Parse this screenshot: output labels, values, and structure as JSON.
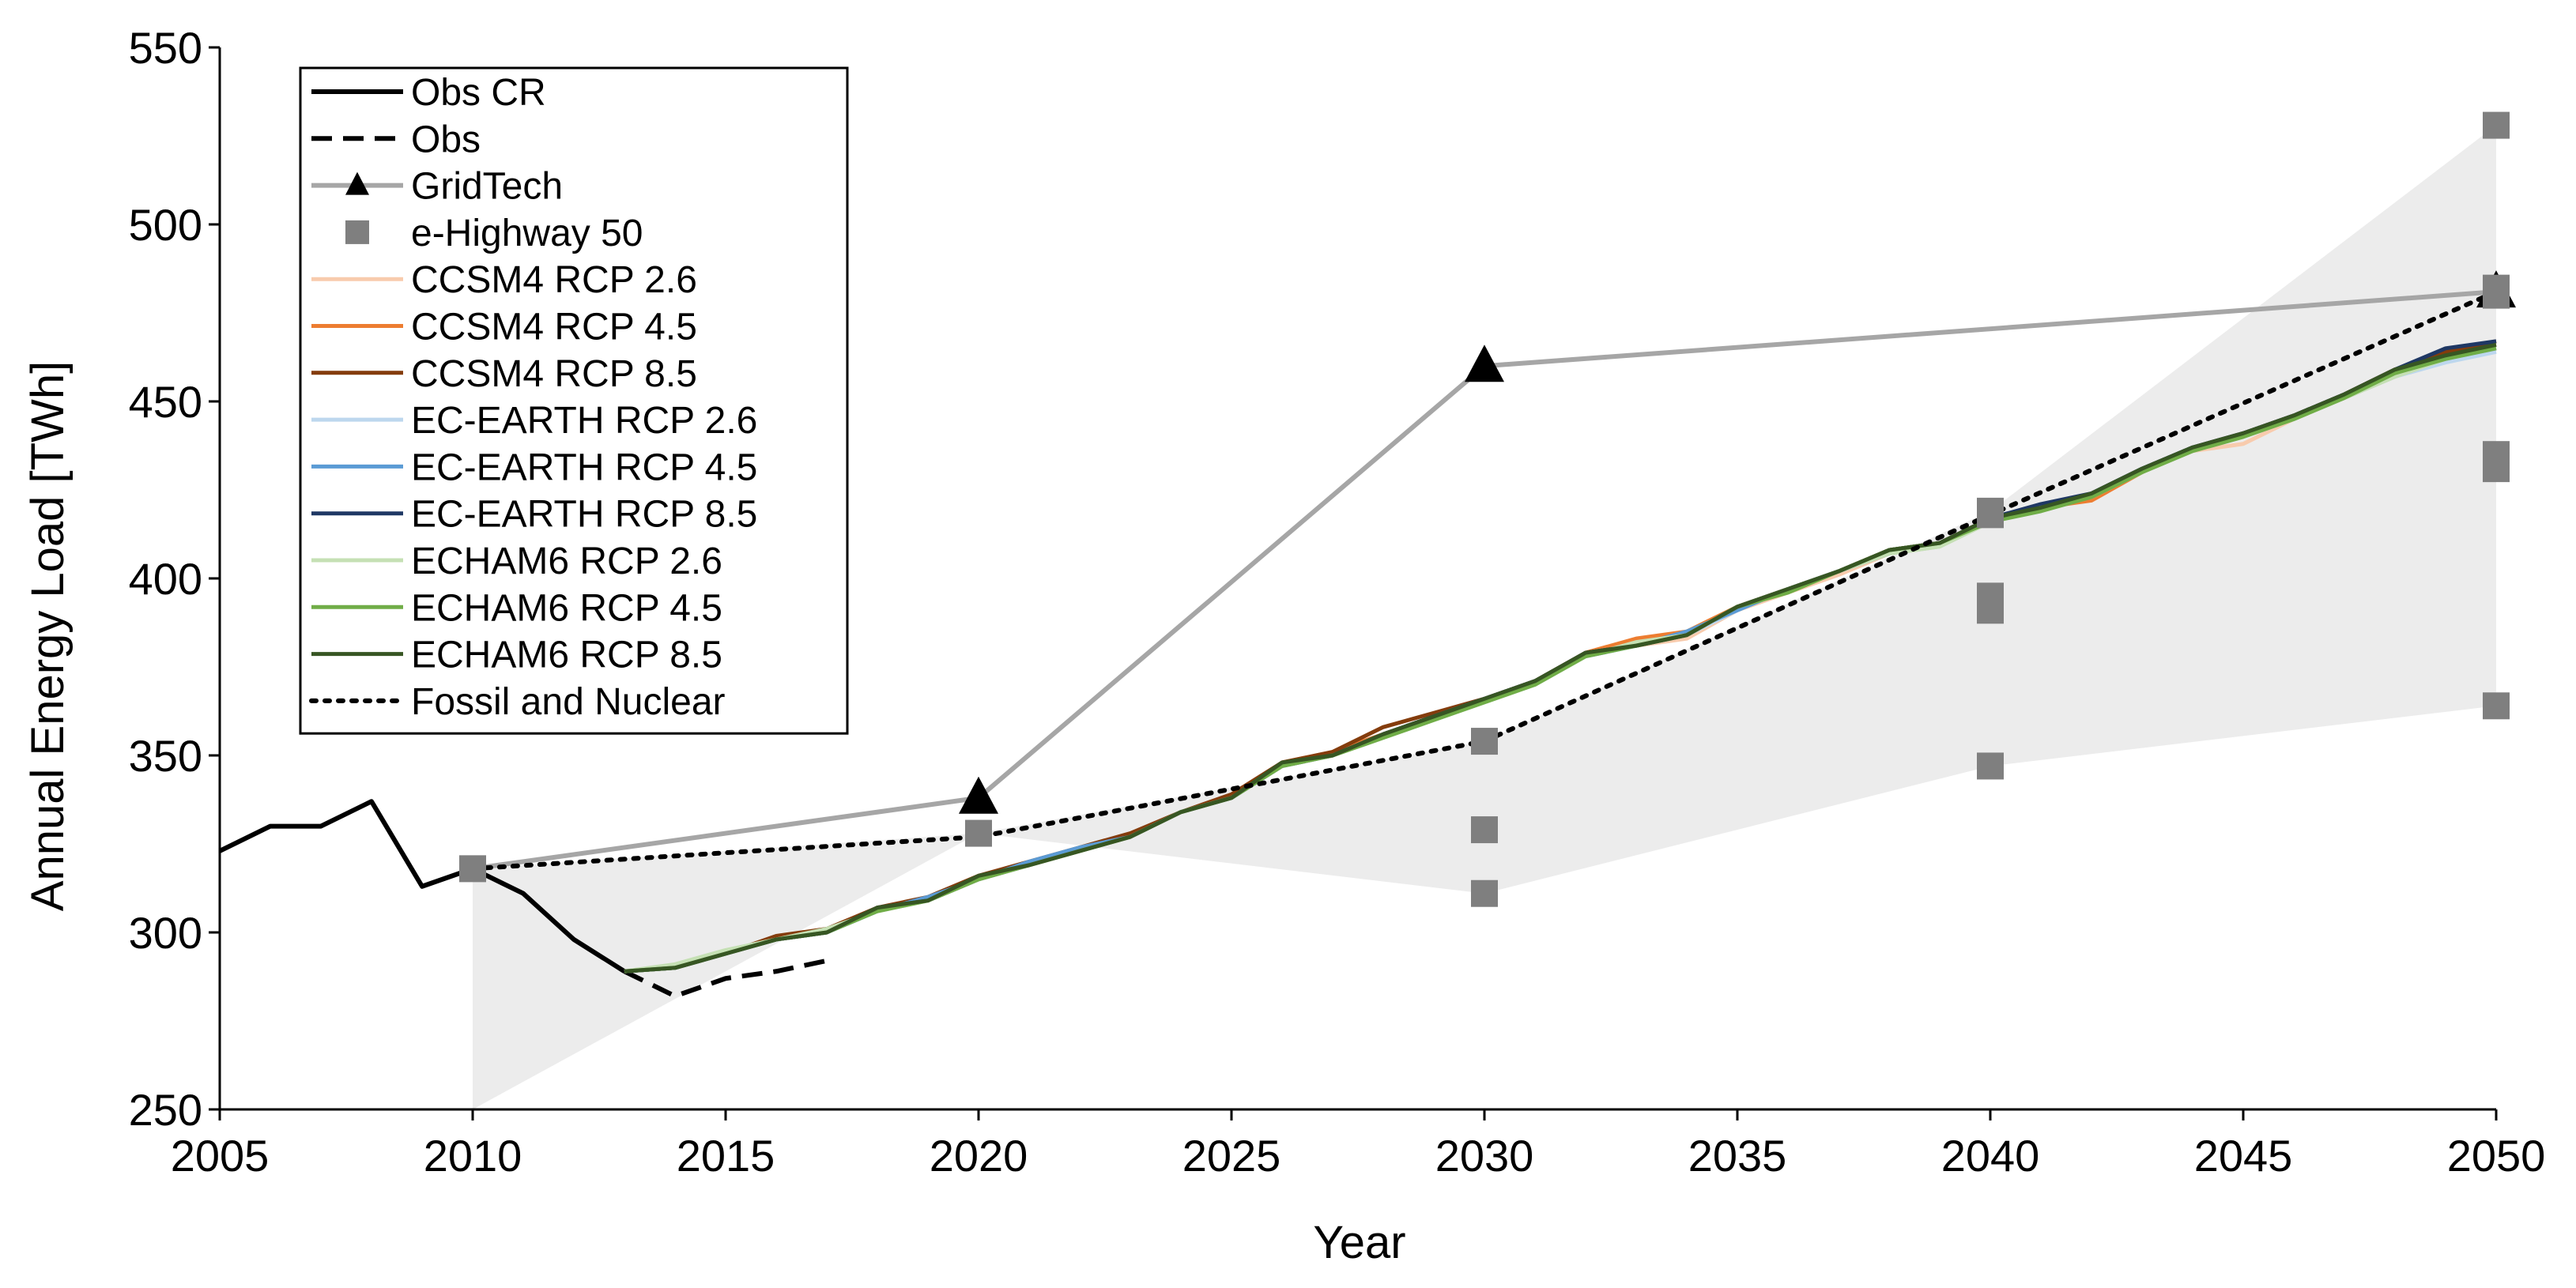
{
  "chart_data": {
    "type": "line",
    "title": "",
    "xlabel": "Year",
    "ylabel": "Annual Energy Load  [TWh]",
    "xlim": [
      2005,
      2050
    ],
    "ylim": [
      250,
      550
    ],
    "xticks": [
      2005,
      2010,
      2015,
      2020,
      2025,
      2030,
      2035,
      2040,
      2045,
      2050
    ],
    "yticks": [
      250,
      300,
      350,
      400,
      450,
      500,
      550
    ],
    "grid": false,
    "legend_position": "top-left",
    "shaded_range": {
      "x": [
        2010,
        2020,
        2030,
        2040,
        2050
      ],
      "lower": [
        250,
        328,
        311,
        347,
        364
      ],
      "upper": [
        318,
        328,
        354,
        419,
        528
      ],
      "color": "#ececec"
    },
    "series": [
      {
        "name": "Obs CR",
        "style": "solid",
        "color": "#000000",
        "width": 6,
        "x": [
          2005,
          2006,
          2007,
          2008,
          2009,
          2010,
          2011,
          2012,
          2013
        ],
        "y": [
          323,
          330,
          330,
          337,
          313,
          318,
          311,
          298,
          289
        ]
      },
      {
        "name": "Obs",
        "style": "dashed",
        "color": "#000000",
        "width": 6,
        "x": [
          2013,
          2014,
          2015,
          2016,
          2017
        ],
        "y": [
          289,
          282,
          287,
          289,
          292
        ]
      },
      {
        "name": "GridTech",
        "style": "solid",
        "color": "#a6a6a6",
        "width": 6,
        "marker": "triangle",
        "x": [
          2010,
          2020,
          2030,
          2050
        ],
        "y": [
          318,
          338,
          460,
          481
        ]
      },
      {
        "name": "e-Highway 50",
        "style": "none",
        "color": "#7f7f7f",
        "marker": "square",
        "x": [
          2010,
          2020,
          2030,
          2030,
          2030,
          2040,
          2040,
          2040,
          2040,
          2040,
          2050,
          2050,
          2050,
          2050,
          2050,
          2050
        ],
        "y": [
          318,
          328,
          354,
          329,
          311,
          419,
          395,
          391,
          347,
          418,
          528,
          482,
          480,
          435,
          431,
          364
        ]
      },
      {
        "name": "CCSM4 RCP 2.6",
        "style": "solid",
        "color": "#f8cbad",
        "width": 5,
        "x": [
          2013,
          2014,
          2015,
          2016,
          2017,
          2018,
          2019,
          2020,
          2021,
          2022,
          2023,
          2024,
          2025,
          2026,
          2027,
          2028,
          2029,
          2030,
          2031,
          2032,
          2033,
          2034,
          2035,
          2036,
          2037,
          2038,
          2039,
          2040,
          2041,
          2042,
          2043,
          2044,
          2045,
          2046,
          2047,
          2048,
          2049,
          2050
        ],
        "y": [
          289,
          290,
          294,
          298,
          300,
          306,
          309,
          315,
          319,
          323,
          327,
          334,
          338,
          347,
          350,
          355,
          360,
          366,
          371,
          378,
          381,
          383,
          391,
          396,
          401,
          407,
          409,
          416,
          420,
          423,
          430,
          436,
          438,
          445,
          451,
          457,
          462,
          465
        ]
      },
      {
        "name": "CCSM4 RCP 4.5",
        "style": "solid",
        "color": "#ed7d31",
        "width": 5,
        "x": [
          2013,
          2014,
          2015,
          2016,
          2017,
          2018,
          2019,
          2020,
          2021,
          2022,
          2023,
          2024,
          2025,
          2026,
          2027,
          2028,
          2029,
          2030,
          2031,
          2032,
          2033,
          2034,
          2035,
          2036,
          2037,
          2038,
          2039,
          2040,
          2041,
          2042,
          2043,
          2044,
          2045,
          2046,
          2047,
          2048,
          2049,
          2050
        ],
        "y": [
          289,
          290,
          294,
          298,
          300,
          307,
          309,
          316,
          319,
          323,
          327,
          334,
          338,
          348,
          351,
          356,
          361,
          366,
          371,
          379,
          383,
          385,
          392,
          397,
          402,
          408,
          410,
          417,
          420,
          422,
          430,
          437,
          441,
          446,
          452,
          459,
          463,
          466
        ]
      },
      {
        "name": "CCSM4 RCP 8.5",
        "style": "solid",
        "color": "#843c0c",
        "width": 5,
        "x": [
          2013,
          2014,
          2015,
          2016,
          2017,
          2018,
          2019,
          2020,
          2021,
          2022,
          2023,
          2024,
          2025,
          2026,
          2027,
          2028,
          2029,
          2030,
          2031,
          2032,
          2033,
          2034,
          2035,
          2036,
          2037,
          2038,
          2039,
          2040,
          2041,
          2042,
          2043,
          2044,
          2045,
          2046,
          2047,
          2048,
          2049,
          2050
        ],
        "y": [
          289,
          290,
          294,
          299,
          301,
          307,
          310,
          316,
          320,
          324,
          328,
          334,
          339,
          348,
          351,
          358,
          362,
          366,
          371,
          379,
          381,
          384,
          392,
          397,
          402,
          408,
          410,
          417,
          420,
          424,
          431,
          437,
          441,
          446,
          452,
          459,
          464,
          467
        ]
      },
      {
        "name": "EC-EARTH RCP 2.6",
        "style": "solid",
        "color": "#bdd7ee",
        "width": 5,
        "x": [
          2013,
          2014,
          2015,
          2016,
          2017,
          2018,
          2019,
          2020,
          2021,
          2022,
          2023,
          2024,
          2025,
          2026,
          2027,
          2028,
          2029,
          2030,
          2031,
          2032,
          2033,
          2034,
          2035,
          2036,
          2037,
          2038,
          2039,
          2040,
          2041,
          2042,
          2043,
          2044,
          2045,
          2046,
          2047,
          2048,
          2049,
          2050
        ],
        "y": [
          289,
          290,
          294,
          298,
          300,
          306,
          309,
          315,
          319,
          323,
          327,
          334,
          338,
          347,
          350,
          355,
          360,
          365,
          370,
          378,
          381,
          384,
          391,
          397,
          402,
          407,
          409,
          416,
          419,
          424,
          430,
          436,
          440,
          445,
          451,
          457,
          461,
          464
        ]
      },
      {
        "name": "EC-EARTH RCP 4.5",
        "style": "solid",
        "color": "#5b9bd5",
        "width": 5,
        "x": [
          2013,
          2014,
          2015,
          2016,
          2017,
          2018,
          2019,
          2020,
          2021,
          2022,
          2023,
          2024,
          2025,
          2026,
          2027,
          2028,
          2029,
          2030,
          2031,
          2032,
          2033,
          2034,
          2035,
          2036,
          2037,
          2038,
          2039,
          2040,
          2041,
          2042,
          2043,
          2044,
          2045,
          2046,
          2047,
          2048,
          2049,
          2050
        ],
        "y": [
          289,
          290,
          294,
          298,
          300,
          306,
          310,
          315,
          320,
          324,
          327,
          334,
          338,
          347,
          350,
          356,
          361,
          366,
          371,
          378,
          381,
          385,
          391,
          397,
          402,
          407,
          410,
          416,
          420,
          424,
          431,
          437,
          441,
          446,
          452,
          458,
          462,
          465
        ]
      },
      {
        "name": "EC-EARTH RCP 8.5",
        "style": "solid",
        "color": "#1f3864",
        "width": 5,
        "x": [
          2013,
          2014,
          2015,
          2016,
          2017,
          2018,
          2019,
          2020,
          2021,
          2022,
          2023,
          2024,
          2025,
          2026,
          2027,
          2028,
          2029,
          2030,
          2031,
          2032,
          2033,
          2034,
          2035,
          2036,
          2037,
          2038,
          2039,
          2040,
          2041,
          2042,
          2043,
          2044,
          2045,
          2046,
          2047,
          2048,
          2049,
          2050
        ],
        "y": [
          289,
          290,
          294,
          298,
          300,
          307,
          309,
          315,
          319,
          323,
          327,
          334,
          338,
          347,
          350,
          356,
          361,
          366,
          371,
          379,
          381,
          384,
          392,
          397,
          402,
          408,
          410,
          417,
          421,
          424,
          431,
          437,
          441,
          446,
          452,
          459,
          465,
          467
        ]
      },
      {
        "name": "ECHAM6 RCP 2.6",
        "style": "solid",
        "color": "#c5e0b4",
        "width": 5,
        "x": [
          2013,
          2014,
          2015,
          2016,
          2017,
          2018,
          2019,
          2020,
          2021,
          2022,
          2023,
          2024,
          2025,
          2026,
          2027,
          2028,
          2029,
          2030,
          2031,
          2032,
          2033,
          2034,
          2035,
          2036,
          2037,
          2038,
          2039,
          2040,
          2041,
          2042,
          2043,
          2044,
          2045,
          2046,
          2047,
          2048,
          2049,
          2050
        ],
        "y": [
          289,
          291,
          295,
          298,
          301,
          306,
          309,
          315,
          319,
          323,
          327,
          334,
          338,
          347,
          350,
          355,
          360,
          365,
          370,
          378,
          382,
          384,
          392,
          397,
          402,
          407,
          409,
          416,
          420,
          423,
          430,
          436,
          440,
          445,
          451,
          457,
          462,
          465
        ]
      },
      {
        "name": "ECHAM6 RCP 4.5",
        "style": "solid",
        "color": "#70ad47",
        "width": 5,
        "x": [
          2013,
          2014,
          2015,
          2016,
          2017,
          2018,
          2019,
          2020,
          2021,
          2022,
          2023,
          2024,
          2025,
          2026,
          2027,
          2028,
          2029,
          2030,
          2031,
          2032,
          2033,
          2034,
          2035,
          2036,
          2037,
          2038,
          2039,
          2040,
          2041,
          2042,
          2043,
          2044,
          2045,
          2046,
          2047,
          2048,
          2049,
          2050
        ],
        "y": [
          289,
          290,
          294,
          298,
          300,
          306,
          309,
          315,
          319,
          323,
          327,
          334,
          338,
          347,
          350,
          355,
          360,
          365,
          370,
          378,
          381,
          384,
          392,
          396,
          402,
          408,
          410,
          416,
          419,
          423,
          430,
          436,
          440,
          445,
          451,
          458,
          462,
          465
        ]
      },
      {
        "name": "ECHAM6 RCP 8.5",
        "style": "solid",
        "color": "#375623",
        "width": 5,
        "x": [
          2013,
          2014,
          2015,
          2016,
          2017,
          2018,
          2019,
          2020,
          2021,
          2022,
          2023,
          2024,
          2025,
          2026,
          2027,
          2028,
          2029,
          2030,
          2031,
          2032,
          2033,
          2034,
          2035,
          2036,
          2037,
          2038,
          2039,
          2040,
          2041,
          2042,
          2043,
          2044,
          2045,
          2046,
          2047,
          2048,
          2049,
          2050
        ],
        "y": [
          289,
          290,
          294,
          298,
          300,
          307,
          309,
          316,
          319,
          323,
          327,
          334,
          338,
          348,
          350,
          356,
          361,
          366,
          371,
          379,
          381,
          384,
          392,
          397,
          402,
          408,
          410,
          417,
          420,
          424,
          431,
          437,
          441,
          446,
          452,
          459,
          463,
          466
        ]
      },
      {
        "name": "Fossil and Nuclear",
        "style": "dotted",
        "color": "#000000",
        "width": 6,
        "x": [
          2010,
          2020,
          2030,
          2040,
          2050
        ],
        "y": [
          318,
          327,
          354,
          418,
          481
        ]
      }
    ]
  }
}
